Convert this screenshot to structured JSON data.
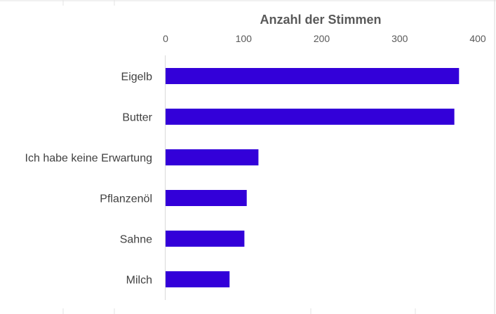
{
  "chart_data": {
    "type": "bar",
    "orientation": "horizontal",
    "title": "",
    "xlabel": "Anzahl der Stimmen",
    "xaxis_position": "top",
    "ylabel": "",
    "categories": [
      "Eigelb",
      "Butter",
      "Ich habe keine Erwartung",
      "Pflanzenöl",
      "Sahne",
      "Milch"
    ],
    "values": [
      376,
      370,
      119,
      104,
      101,
      82
    ],
    "xlim": [
      0,
      400
    ],
    "xticks": [
      "0",
      "100",
      "200",
      "300",
      "400"
    ],
    "bar_color": "#3300D9",
    "grid": false,
    "legend": "none"
  }
}
